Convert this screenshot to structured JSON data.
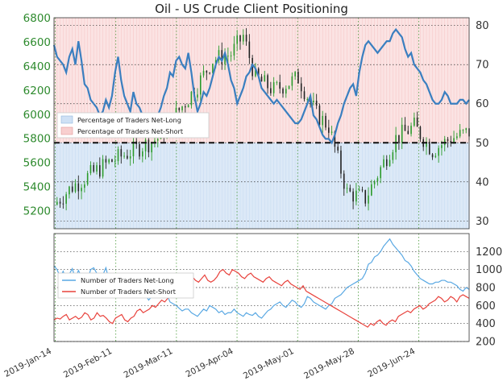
{
  "chart_data": [
    {
      "type": "line",
      "title": "Oil - US Crude Client Positioning",
      "x_tick_labels": [
        "2019-Jan-14",
        "2019-Feb-11",
        "2019-Mar-11",
        "2019-Apr-04",
        "2019-May-01",
        "2019-May-28",
        "2019-Jun-24"
      ],
      "price_axis": {
        "ticks": [
          5200,
          5400,
          5600,
          5800,
          6000,
          6200,
          6400,
          6600,
          6800
        ],
        "ylim": [
          5050,
          6800
        ]
      },
      "percent_axis": {
        "ticks": [
          30,
          40,
          50,
          60,
          70,
          80
        ],
        "ylim": [
          28,
          82
        ]
      },
      "reference_line": {
        "value": 50,
        "axis": "percent",
        "style": "dashed"
      },
      "legend": {
        "placement": "left",
        "entries": [
          "Percentage of Traders Net-Long",
          "Percentage of Traders Net-Short"
        ]
      },
      "grid": true,
      "colors": {
        "net_long": "#3a7fc0",
        "net_short": "#e8423c",
        "long_fill": "#dce9f7",
        "short_fill": "#fbe3e3",
        "candle_up": "#2a9a2a",
        "candle_down": "#222222",
        "axis_text": "#2d8a2d"
      },
      "series": [
        {
          "name": "Percentage of Traders Net-Long",
          "values": [
            75,
            72,
            71,
            70,
            68,
            72,
            74,
            70,
            76,
            71,
            65,
            64,
            61,
            60,
            59,
            57,
            58,
            61,
            59,
            62,
            68,
            72,
            66,
            62,
            60,
            58,
            63,
            60,
            59,
            57,
            55,
            54,
            53,
            55,
            57,
            59,
            62,
            64,
            68,
            67,
            71,
            72,
            70,
            69,
            73,
            68,
            62,
            58,
            60,
            63,
            62,
            64,
            67,
            70,
            72,
            71,
            73,
            70,
            66,
            64,
            60,
            62,
            64,
            67,
            68,
            70,
            69,
            67,
            64,
            63,
            62,
            61,
            60,
            61,
            60,
            59,
            58,
            57,
            56,
            55,
            55,
            56,
            58,
            60,
            62,
            57,
            56,
            54,
            52,
            51,
            51,
            50,
            52,
            55,
            57,
            60,
            62,
            64,
            65,
            62,
            68,
            72,
            75,
            76,
            75,
            74,
            73,
            74,
            75,
            76,
            76,
            78,
            79,
            78,
            77,
            74,
            72,
            73,
            70,
            69,
            68,
            66,
            65,
            63,
            61,
            60,
            60,
            61,
            63,
            62,
            60,
            60,
            60,
            61,
            61,
            60,
            61
          ]
        }
      ]
    },
    {
      "type": "line",
      "y_ticks": [
        200,
        400,
        600,
        800,
        1000,
        1200
      ],
      "ylim": [
        200,
        1400
      ],
      "legend": {
        "placement": "left",
        "entries": [
          "Number of Traders Net-Long",
          "Number of Traders Net-Short"
        ]
      },
      "grid": true,
      "series": [
        {
          "name": "Number of Traders Net-Long",
          "values": [
            1040,
            1000,
            920,
            980,
            900,
            950,
            1010,
            900,
            990,
            920,
            860,
            880,
            1000,
            1020,
            960,
            900,
            940,
            1020,
            880,
            860,
            760,
            700,
            820,
            760,
            700,
            840,
            780,
            760,
            700,
            700,
            720,
            660,
            700,
            720,
            700,
            820,
            740,
            720,
            640,
            620,
            600,
            570,
            540,
            560,
            560,
            520,
            500,
            480,
            520,
            560,
            540,
            600,
            580,
            560,
            520,
            540,
            500,
            520,
            520,
            560,
            520,
            500,
            480,
            520,
            500,
            490,
            520,
            480,
            460,
            500,
            540,
            560,
            600,
            620,
            640,
            600,
            580,
            620,
            660,
            640,
            600,
            580,
            620,
            700,
            680,
            640,
            620,
            600,
            580,
            560,
            600,
            620,
            680,
            700,
            720,
            760,
            800,
            820,
            840,
            860,
            880,
            900,
            960,
            1060,
            1080,
            1140,
            1160,
            1200,
            1260,
            1300,
            1340,
            1280,
            1240,
            1200,
            1160,
            1100,
            1080,
            1040,
            980,
            940,
            900,
            880,
            860,
            840,
            840,
            860,
            860,
            880,
            880,
            860,
            860,
            840,
            820,
            780,
            760,
            800,
            780
          ]
        },
        {
          "name": "Number of Traders Net-Short",
          "values": [
            440,
            460,
            450,
            480,
            500,
            440,
            460,
            480,
            450,
            470,
            520,
            500,
            440,
            460,
            520,
            480,
            490,
            460,
            420,
            400,
            460,
            480,
            500,
            440,
            420,
            460,
            480,
            540,
            560,
            520,
            540,
            560,
            600,
            580,
            620,
            660,
            640,
            680,
            720,
            760,
            780,
            800,
            840,
            880,
            900,
            920,
            880,
            860,
            900,
            940,
            880,
            860,
            880,
            920,
            980,
            1000,
            960,
            940,
            1000,
            980,
            960,
            920,
            900,
            940,
            960,
            920,
            900,
            880,
            860,
            900,
            920,
            880,
            860,
            840,
            820,
            860,
            880,
            840,
            820,
            800,
            780,
            820,
            760,
            740,
            720,
            700,
            680,
            660,
            640,
            620,
            600,
            580,
            560,
            540,
            520,
            500,
            480,
            460,
            440,
            420,
            400,
            380,
            360,
            400,
            380,
            420,
            440,
            400,
            380,
            420,
            440,
            420,
            480,
            500,
            520,
            540,
            520,
            560,
            580,
            600,
            560,
            580,
            620,
            640,
            660,
            700,
            680,
            640,
            660,
            700,
            680,
            640,
            700,
            720,
            700,
            680
          ]
        }
      ]
    }
  ]
}
